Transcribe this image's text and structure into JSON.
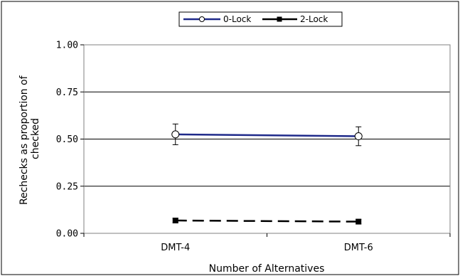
{
  "chart_data": {
    "type": "line",
    "title": "",
    "xlabel": "Number of Alternatives",
    "ylabel_lines": [
      "Rechecks as proportion of",
      "checked"
    ],
    "categories": [
      "DMT-4",
      "DMT-6"
    ],
    "ylim": [
      0,
      1
    ],
    "yticks": [
      "0.00",
      "0.25",
      "0.50",
      "0.75",
      "1.00"
    ],
    "ytick_values": [
      0,
      0.25,
      0.5,
      0.75,
      1.0
    ],
    "grid": "horizontal",
    "legend_position": "top-center",
    "series": [
      {
        "name": "0-Lock",
        "values": [
          0.525,
          0.515
        ],
        "error": [
          0.055,
          0.05
        ],
        "color": "#1f2a8a",
        "line_style": "solid",
        "marker": "open-circle"
      },
      {
        "name": "2-Lock",
        "values": [
          0.068,
          0.062
        ],
        "error": [
          0.012,
          0.012
        ],
        "color": "#000000",
        "line_style": "dashed",
        "marker": "filled-square"
      }
    ]
  }
}
